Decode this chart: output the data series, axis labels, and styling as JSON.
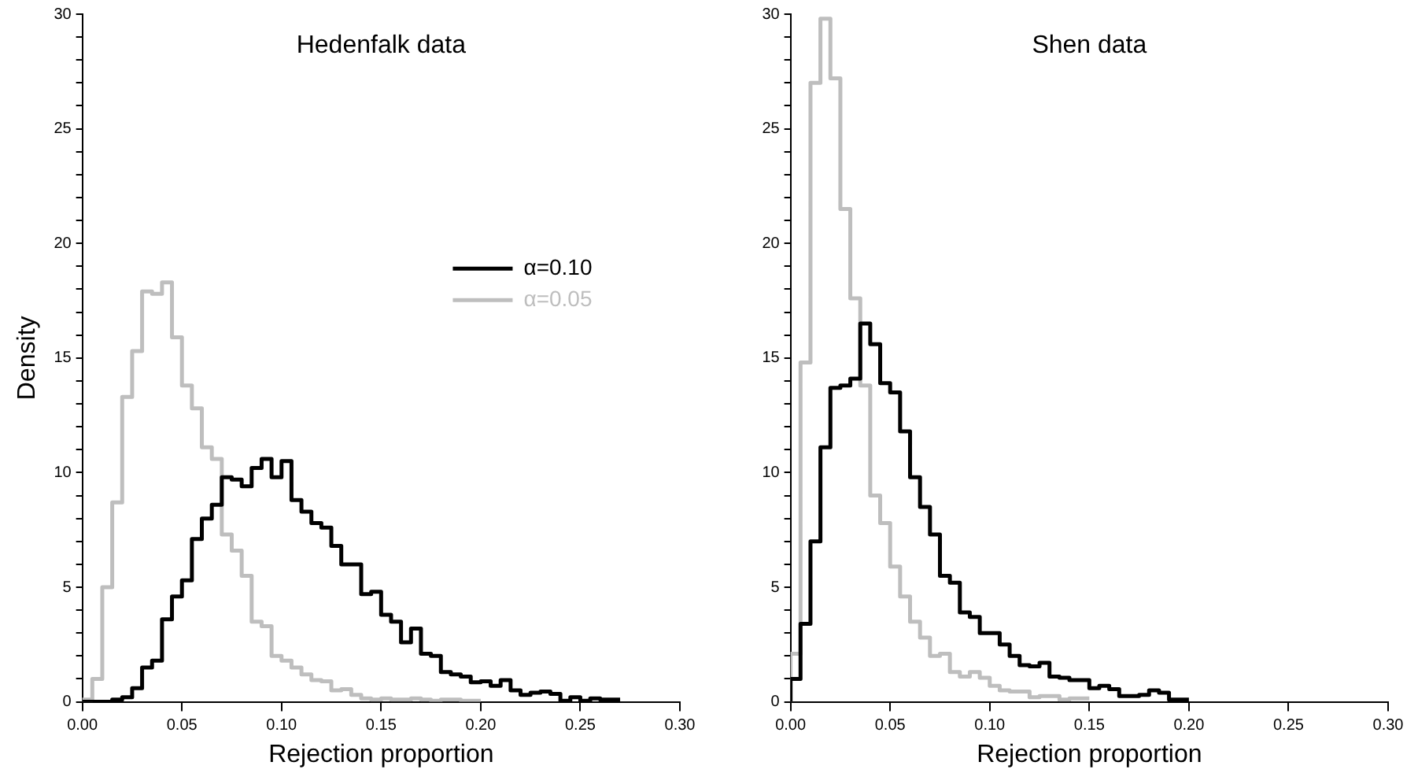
{
  "chart_data": [
    {
      "type": "step",
      "title": "Hedenfalk data",
      "xlabel": "Rejection proportion",
      "ylabel": "Density",
      "x": [
        0,
        0.005,
        0.01,
        0.015,
        0.02,
        0.025,
        0.03,
        0.035,
        0.04,
        0.045,
        0.05,
        0.055,
        0.06,
        0.065,
        0.07,
        0.075,
        0.08,
        0.085,
        0.09,
        0.095,
        0.1,
        0.105,
        0.11,
        0.115,
        0.12,
        0.125,
        0.13,
        0.135,
        0.14,
        0.145,
        0.15,
        0.155,
        0.16,
        0.165,
        0.17,
        0.175,
        0.18,
        0.185,
        0.19,
        0.195,
        0.2,
        0.205,
        0.21,
        0.215,
        0.22,
        0.225,
        0.23,
        0.235,
        0.24,
        0.245,
        0.25,
        0.255,
        0.26,
        0.265,
        0.27
      ],
      "series": [
        {
          "name": "α=0.10",
          "color": "#000000",
          "values": [
            0,
            0,
            0,
            0,
            0.1,
            0.2,
            0.6,
            1.5,
            1.8,
            3.6,
            4.6,
            5.3,
            7.1,
            8.0,
            8.6,
            9.8,
            9.7,
            9.4,
            10.2,
            10.6,
            9.8,
            10.5,
            8.8,
            8.3,
            7.8,
            7.6,
            6.8,
            6.0,
            6.0,
            4.7,
            4.8,
            3.8,
            3.5,
            2.6,
            3.2,
            2.1,
            2.0,
            1.3,
            1.2,
            1.1,
            0.85,
            0.9,
            0.7,
            0.95,
            0.5,
            0.3,
            0.4,
            0.45,
            0.35,
            0.05,
            0.2,
            0.05,
            0.15,
            0.1,
            0.1
          ]
        },
        {
          "name": "α=0.05",
          "color": "#bebebe",
          "x": [
            0,
            0.005,
            0.01,
            0.015,
            0.02,
            0.025,
            0.03,
            0.035,
            0.04,
            0.045,
            0.05,
            0.055,
            0.06,
            0.065,
            0.07,
            0.075,
            0.08,
            0.085,
            0.09,
            0.095,
            0.1,
            0.105,
            0.11,
            0.115,
            0.12,
            0.125,
            0.13,
            0.135,
            0.14,
            0.145,
            0.15,
            0.155,
            0.16,
            0.165,
            0.17,
            0.175,
            0.18,
            0.185,
            0.19,
            0.195,
            0.2
          ],
          "values": [
            0,
            0.1,
            1.0,
            5.0,
            8.7,
            13.3,
            15.3,
            17.9,
            17.8,
            18.3,
            15.9,
            13.8,
            12.8,
            11.1,
            10.6,
            7.3,
            6.6,
            5.5,
            3.5,
            3.3,
            2.0,
            1.8,
            1.5,
            1.2,
            0.95,
            0.9,
            0.5,
            0.55,
            0.3,
            0.15,
            0.1,
            0.15,
            0.1,
            0.1,
            0.15,
            0.1,
            0.05,
            0.1,
            0.1,
            0.05,
            0.05
          ]
        }
      ],
      "xlim": [
        0,
        0.3
      ],
      "xticks": [
        {
          "value": 0,
          "label": "0.00"
        },
        {
          "value": 0.05,
          "label": "0.05"
        },
        {
          "value": 0.1,
          "label": "0.10"
        },
        {
          "value": 0.15,
          "label": "0.15"
        },
        {
          "value": 0.2,
          "label": "0.20"
        },
        {
          "value": 0.25,
          "label": "0.25"
        },
        {
          "value": 0.3,
          "label": "0.30"
        }
      ],
      "ylim": [
        0,
        30
      ],
      "yticks": [
        0,
        {
          "value": 1,
          "label": null
        },
        {
          "value": 2,
          "label": null
        },
        {
          "value": 3,
          "label": null
        },
        {
          "value": 4,
          "label": null
        },
        5,
        {
          "value": 6,
          "label": null
        },
        {
          "value": 7,
          "label": null
        },
        {
          "value": 8,
          "label": null
        },
        {
          "value": 9,
          "label": null
        },
        10,
        {
          "value": 11,
          "label": null
        },
        {
          "value": 12,
          "label": null
        },
        {
          "value": 13,
          "label": null
        },
        {
          "value": 14,
          "label": null
        },
        15,
        {
          "value": 16,
          "label": null
        },
        {
          "value": 17,
          "label": null
        },
        {
          "value": 18,
          "label": null
        },
        {
          "value": 19,
          "label": null
        },
        20,
        {
          "value": 21,
          "label": null
        },
        {
          "value": 22,
          "label": null
        },
        {
          "value": 23,
          "label": null
        },
        {
          "value": 24,
          "label": null
        },
        25,
        {
          "value": 26,
          "label": null
        },
        {
          "value": 27,
          "label": null
        },
        {
          "value": 28,
          "label": null
        },
        {
          "value": 29,
          "label": null
        },
        30
      ],
      "grid": false,
      "legend": "right",
      "marker": "none",
      "line_style": "solid"
    },
    {
      "type": "step",
      "title": "Shen data",
      "xlabel": "Rejection proportion",
      "x": [
        0,
        0.005,
        0.01,
        0.015,
        0.02,
        0.025,
        0.03,
        0.035,
        0.04,
        0.045,
        0.05,
        0.055,
        0.06,
        0.065,
        0.07,
        0.075,
        0.08,
        0.085,
        0.09,
        0.095,
        0.1,
        0.105,
        0.11,
        0.115,
        0.12,
        0.125,
        0.13,
        0.135,
        0.14,
        0.145,
        0.15,
        0.155,
        0.16,
        0.165,
        0.17,
        0.175,
        0.18,
        0.185,
        0.19,
        0.195,
        0.2
      ],
      "series": [
        {
          "color": "#000000",
          "values": [
            0,
            1.0,
            3.4,
            7.0,
            11.1,
            13.7,
            13.8,
            14.1,
            16.5,
            15.6,
            13.9,
            13.5,
            11.8,
            9.8,
            8.5,
            7.3,
            5.5,
            5.2,
            3.9,
            3.7,
            3.0,
            3.0,
            2.5,
            2.0,
            1.6,
            1.55,
            1.7,
            1.1,
            1.05,
            0.95,
            0.95,
            0.6,
            0.7,
            0.55,
            0.25,
            0.25,
            0.3,
            0.5,
            0.4,
            0.1,
            0.1
          ]
        },
        {
          "color": "#bebebe",
          "x": [
            0,
            0.005,
            0.01,
            0.015,
            0.02,
            0.025,
            0.03,
            0.035,
            0.04,
            0.045,
            0.05,
            0.055,
            0.06,
            0.065,
            0.07,
            0.075,
            0.08,
            0.085,
            0.09,
            0.095,
            0.1,
            0.105,
            0.11,
            0.115,
            0.12,
            0.125,
            0.13,
            0.135,
            0.14,
            0.145,
            0.15
          ],
          "values": [
            0,
            2.1,
            14.8,
            27.0,
            29.8,
            27.2,
            21.5,
            17.6,
            13.8,
            9.0,
            7.8,
            5.9,
            4.6,
            3.5,
            2.8,
            2.0,
            2.1,
            1.3,
            1.1,
            1.3,
            1.05,
            0.7,
            0.5,
            0.45,
            0.45,
            0.2,
            0.25,
            0.25,
            0.1,
            0.15,
            0.15
          ]
        }
      ],
      "xlim": [
        0,
        0.3
      ],
      "xticks": [
        {
          "value": 0,
          "label": "0.00"
        },
        {
          "value": 0.05,
          "label": "0.05"
        },
        {
          "value": 0.1,
          "label": "0.10"
        },
        {
          "value": 0.15,
          "label": "0.15"
        },
        {
          "value": 0.2,
          "label": "0.20"
        },
        {
          "value": 0.25,
          "label": "0.25"
        },
        {
          "value": 0.3,
          "label": "0.30"
        }
      ],
      "ylim": [
        0,
        30
      ],
      "yticks": [
        0,
        {
          "value": 1,
          "label": null
        },
        {
          "value": 2,
          "label": null
        },
        {
          "value": 3,
          "label": null
        },
        {
          "value": 4,
          "label": null
        },
        5,
        {
          "value": 6,
          "label": null
        },
        {
          "value": 7,
          "label": null
        },
        {
          "value": 8,
          "label": null
        },
        {
          "value": 9,
          "label": null
        },
        10,
        {
          "value": 11,
          "label": null
        },
        {
          "value": 12,
          "label": null
        },
        {
          "value": 13,
          "label": null
        },
        {
          "value": 14,
          "label": null
        },
        15,
        {
          "value": 16,
          "label": null
        },
        {
          "value": 17,
          "label": null
        },
        {
          "value": 18,
          "label": null
        },
        {
          "value": 19,
          "label": null
        },
        20,
        {
          "value": 21,
          "label": null
        },
        {
          "value": 22,
          "label": null
        },
        {
          "value": 23,
          "label": null
        },
        {
          "value": 24,
          "label": null
        },
        25,
        {
          "value": 26,
          "label": null
        },
        {
          "value": 27,
          "label": null
        },
        {
          "value": 28,
          "label": null
        },
        {
          "value": 29,
          "label": null
        },
        30
      ],
      "grid": false,
      "legend": false,
      "marker": "none",
      "line_style": "solid"
    }
  ]
}
